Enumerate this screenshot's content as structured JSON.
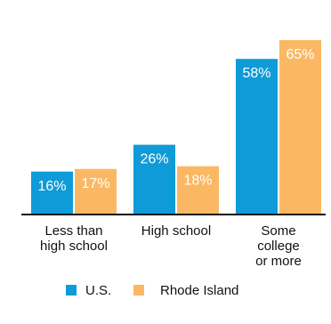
{
  "chart_data": {
    "type": "bar",
    "title": "",
    "xlabel": "",
    "ylabel": "",
    "ylim": [
      0,
      70
    ],
    "grid": false,
    "legend_position": "bottom",
    "categories": [
      [
        "Less than",
        "high school"
      ],
      [
        "High school"
      ],
      [
        "Some",
        "college",
        "or more"
      ]
    ],
    "series": [
      {
        "name": "U.S.",
        "color": "#0f9bd7",
        "values": [
          16,
          26,
          58
        ],
        "value_labels": [
          "16%",
          "26%",
          "58%"
        ]
      },
      {
        "name": "Rhode Island",
        "color": "#fbb864",
        "values": [
          17,
          18,
          65
        ],
        "value_labels": [
          "17%",
          "18%",
          "65%"
        ]
      }
    ]
  }
}
